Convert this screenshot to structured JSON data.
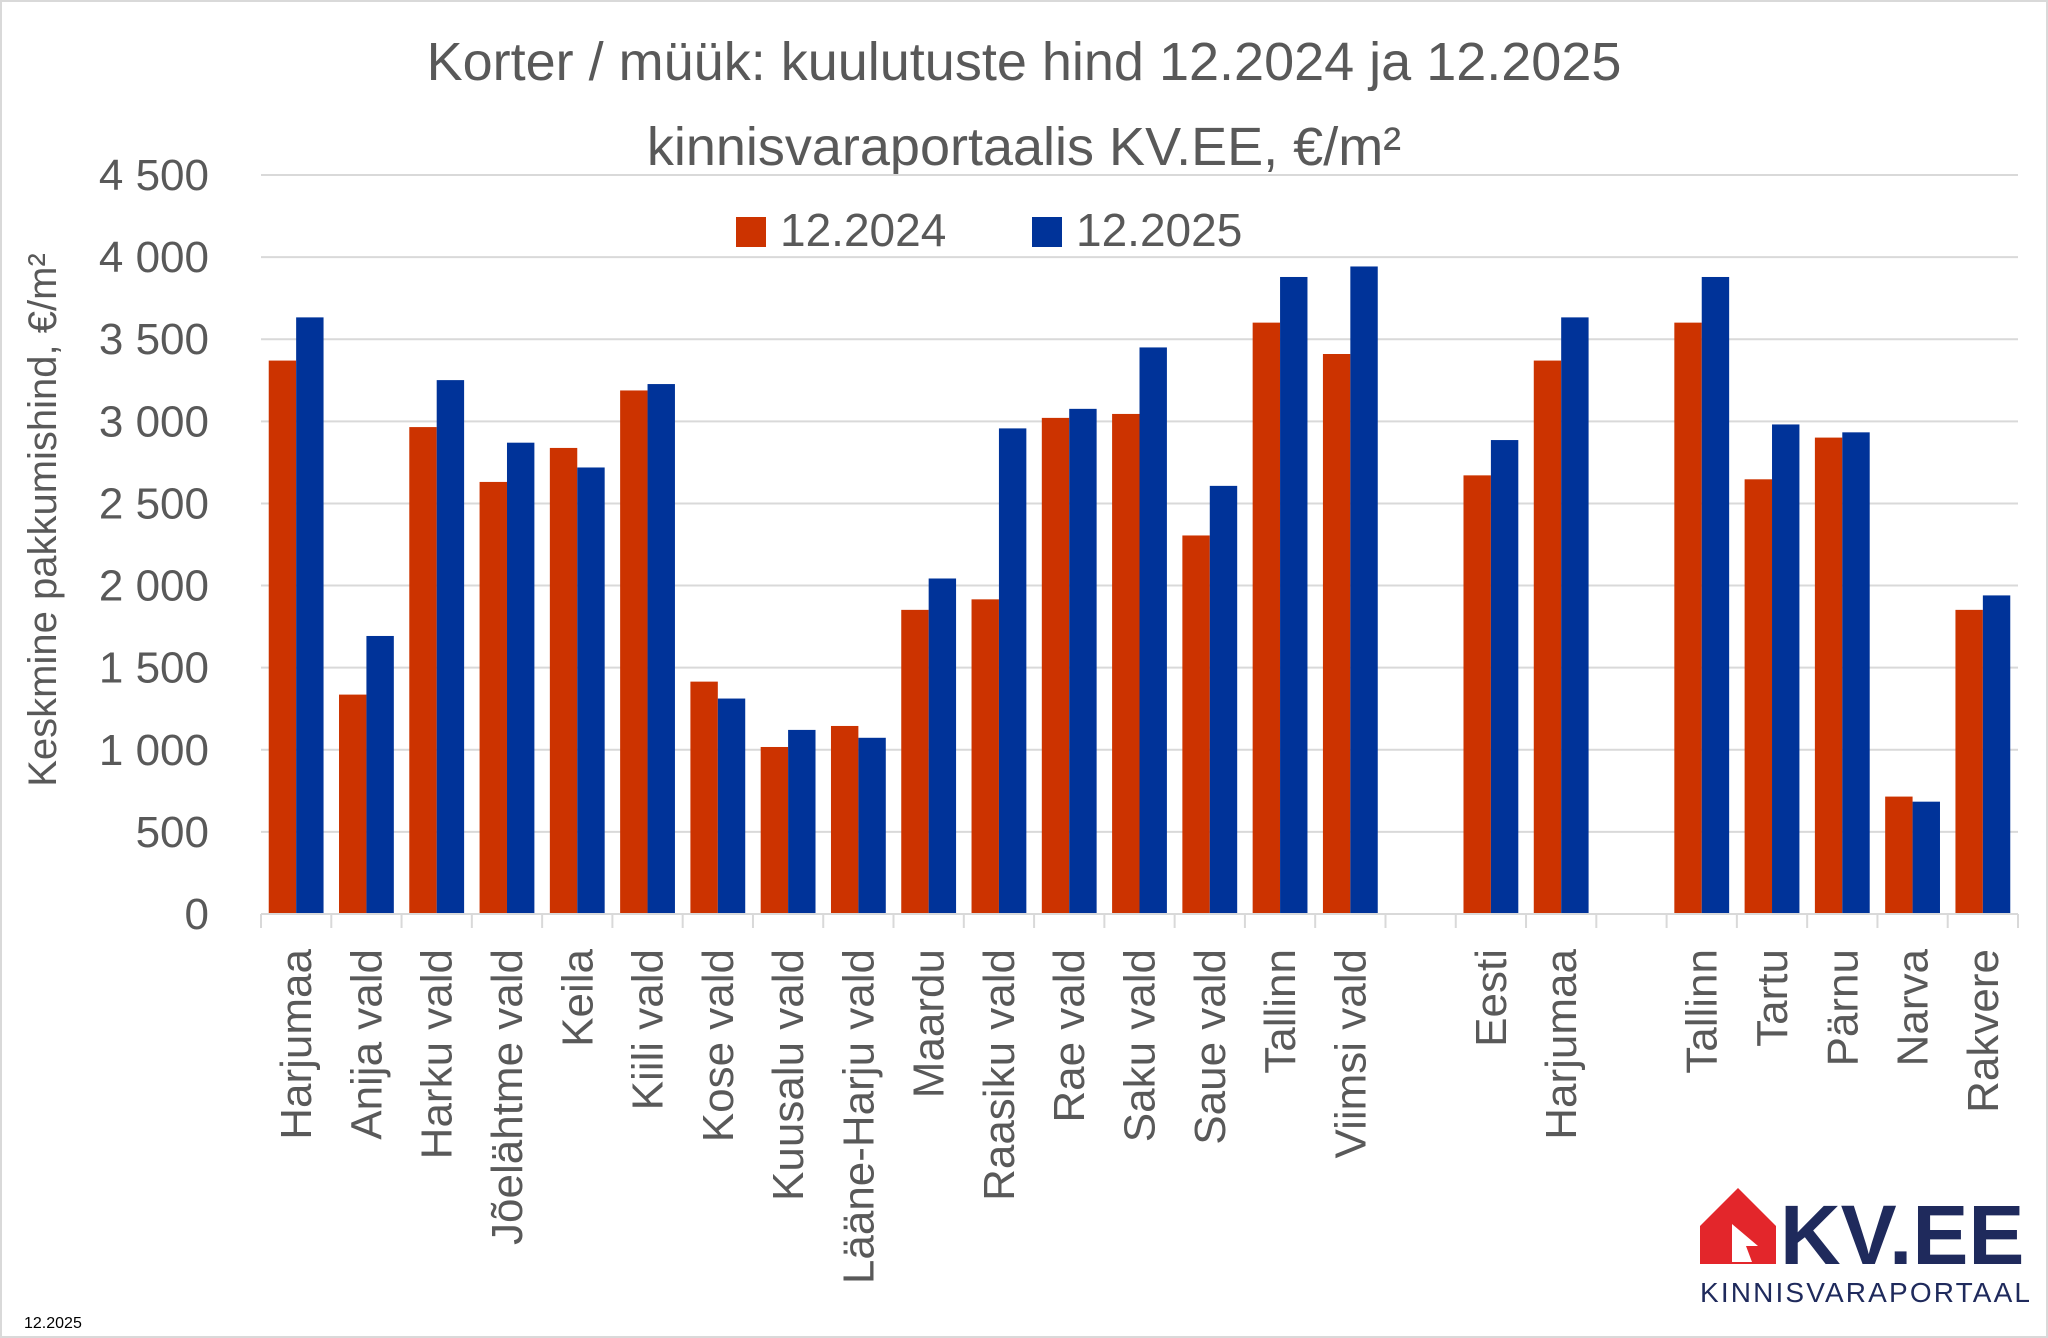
{
  "chart_data": {
    "type": "bar",
    "title": "Korter / müük: kuulutuste hind 12.2024 ja 12.2025",
    "subtitle": "kinnisvaraportaalis KV.EE, €/m²",
    "ylabel": "Keskmine pakkumishind, €/m²",
    "xlabel": "",
    "ylim": [
      0,
      4500
    ],
    "yticks": [
      0,
      500,
      1000,
      1500,
      2000,
      2500,
      3000,
      3500,
      4000,
      4500
    ],
    "ytick_labels": [
      "0",
      "500",
      "1 000",
      "1 500",
      "2 000",
      "2 500",
      "3 000",
      "3 500",
      "4 000",
      "4 500"
    ],
    "grid": true,
    "legend_position": "top-center",
    "categories": [
      "Harjumaa",
      "Anija vald",
      "Harku vald",
      "Jõelähtme vald",
      "Keila",
      "Kiili vald",
      "Kose vald",
      "Kuusalu vald",
      "Lääne-Harju vald",
      "Maardu",
      "Raasiku vald",
      "Rae vald",
      "Saku vald",
      "Saue vald",
      "Tallinn",
      "Viimsi vald",
      "",
      "Eesti",
      "Harjumaa",
      "",
      "Tallinn",
      "Tartu",
      "Pärnu",
      "Narva",
      "Rakvere"
    ],
    "series": [
      {
        "name": "12.2024",
        "color": "#CC3300",
        "values": [
          3370,
          1336,
          2965,
          2631,
          2838,
          3188,
          1415,
          1017,
          1145,
          1852,
          1916,
          3021,
          3045,
          2305,
          3601,
          3410,
          null,
          2671,
          3370,
          null,
          3601,
          2647,
          2901,
          715,
          1852
        ]
      },
      {
        "name": "12.2025",
        "color": "#003399",
        "values": [
          3633,
          1693,
          3251,
          2870,
          2719,
          3227,
          1312,
          1121,
          1073,
          2043,
          2957,
          3076,
          3450,
          2607,
          3879,
          3943,
          null,
          2886,
          3633,
          null,
          3879,
          2981,
          2933,
          684,
          1940
        ]
      }
    ]
  },
  "footer_date": "12.2025",
  "logo": {
    "name": "KV.EE",
    "tagline": "KINNISVARAPORTAAL"
  }
}
